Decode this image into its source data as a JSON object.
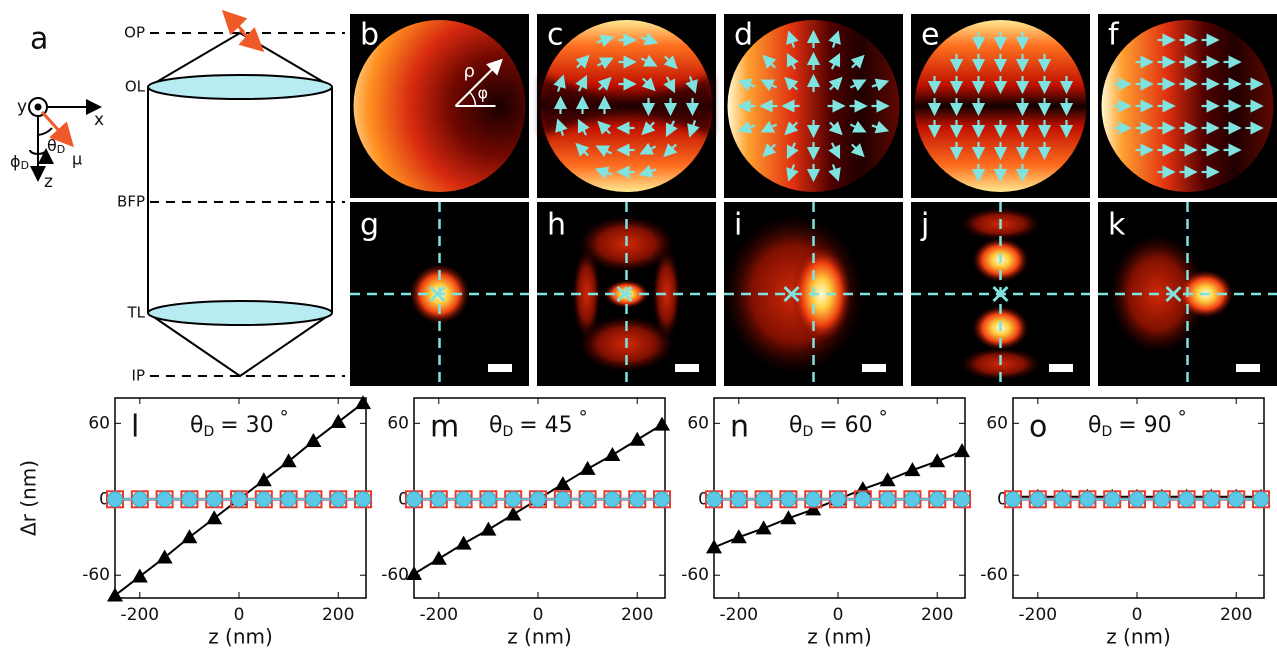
{
  "diagram": {
    "label": "a",
    "planes": [
      "OP",
      "OL",
      "BFP",
      "TL",
      "IP"
    ],
    "axes": {
      "y": "y",
      "x": "x",
      "z": "z",
      "theta": "θ",
      "theta_sub": "D",
      "phi": "ϕ",
      "phi_sub": "D",
      "mu": "μ"
    }
  },
  "pupil_panels": {
    "labels": [
      "b",
      "c",
      "d",
      "e",
      "f"
    ],
    "rho": "ρ",
    "phi": "φ"
  },
  "psf_panels": {
    "labels": [
      "g",
      "h",
      "i",
      "j",
      "k"
    ]
  },
  "chart_data": [
    {
      "type": "line",
      "label": "l",
      "title": {
        "symbol": "θ",
        "subscript": "D",
        "text": "= 30",
        "degree": "°"
      },
      "xlabel": "z (nm)",
      "ylabel": "Δr (nm)",
      "x": [
        -250,
        -200,
        -150,
        -100,
        -50,
        0,
        50,
        100,
        150,
        200,
        250
      ],
      "xlim": [
        -250,
        256
      ],
      "xticks": [
        -200,
        0,
        200
      ],
      "ylim": [
        -78,
        80
      ],
      "yticks": [
        -60,
        0,
        60
      ],
      "series": [
        {
          "marker": "triangle",
          "color": "#000000",
          "values": [
            -76,
            -61,
            -46,
            -30,
            -15,
            0,
            15,
            30,
            46,
            61,
            76
          ]
        },
        {
          "marker": "square",
          "color": "#e8392b",
          "values": [
            0,
            0,
            0,
            0,
            0,
            0,
            0,
            0,
            0,
            0,
            0
          ]
        },
        {
          "marker": "circle",
          "color": "#5cc8e6",
          "values": [
            0,
            0,
            0,
            0,
            0,
            0,
            0,
            0,
            0,
            0,
            0
          ]
        }
      ]
    },
    {
      "type": "line",
      "label": "m",
      "title": {
        "symbol": "θ",
        "subscript": "D",
        "text": "= 45",
        "degree": "°"
      },
      "xlabel": "z (nm)",
      "x": [
        -250,
        -200,
        -150,
        -100,
        -50,
        0,
        50,
        100,
        150,
        200,
        250
      ],
      "xlim": [
        -250,
        256
      ],
      "xticks": [
        -200,
        0,
        200
      ],
      "ylim": [
        -78,
        80
      ],
      "yticks": [
        -60,
        0,
        60
      ],
      "series": [
        {
          "marker": "triangle",
          "color": "#000000",
          "values": [
            -59,
            -47,
            -35,
            -24,
            -12,
            0,
            12,
            24,
            35,
            47,
            59
          ]
        },
        {
          "marker": "square",
          "color": "#e8392b",
          "values": [
            0,
            0,
            0,
            0,
            0,
            0,
            0,
            0,
            0,
            0,
            0
          ]
        },
        {
          "marker": "circle",
          "color": "#5cc8e6",
          "values": [
            0,
            0,
            0,
            0,
            0,
            0,
            0,
            0,
            0,
            0,
            0
          ]
        }
      ]
    },
    {
      "type": "line",
      "label": "n",
      "title": {
        "symbol": "θ",
        "subscript": "D",
        "text": "= 60",
        "degree": "°"
      },
      "xlabel": "z (nm)",
      "x": [
        -250,
        -200,
        -150,
        -100,
        -50,
        0,
        50,
        100,
        150,
        200,
        250
      ],
      "xlim": [
        -250,
        256
      ],
      "xticks": [
        -200,
        0,
        200
      ],
      "ylim": [
        -78,
        80
      ],
      "yticks": [
        -60,
        0,
        60
      ],
      "series": [
        {
          "marker": "triangle",
          "color": "#000000",
          "values": [
            -38,
            -30,
            -23,
            -15,
            -8,
            0,
            8,
            15,
            23,
            30,
            38
          ]
        },
        {
          "marker": "square",
          "color": "#e8392b",
          "values": [
            0,
            0,
            0,
            0,
            0,
            0,
            0,
            0,
            0,
            0,
            0
          ]
        },
        {
          "marker": "circle",
          "color": "#5cc8e6",
          "values": [
            0,
            0,
            0,
            0,
            0,
            0,
            0,
            0,
            0,
            0,
            0
          ]
        }
      ]
    },
    {
      "type": "line",
      "label": "o",
      "title": {
        "symbol": "θ",
        "subscript": "D",
        "text": "= 90",
        "degree": "°"
      },
      "xlabel": "z (nm)",
      "x": [
        -250,
        -200,
        -150,
        -100,
        -50,
        0,
        50,
        100,
        150,
        200,
        250
      ],
      "xlim": [
        -250,
        256
      ],
      "xticks": [
        -200,
        0,
        200
      ],
      "ylim": [
        -78,
        80
      ],
      "yticks": [
        -60,
        0,
        60
      ],
      "series": [
        {
          "marker": "triangle",
          "color": "#000000",
          "values": [
            2,
            2,
            2,
            2,
            2,
            2,
            2,
            2,
            2,
            2,
            2
          ]
        },
        {
          "marker": "square",
          "color": "#e8392b",
          "values": [
            0,
            0,
            0,
            0,
            0,
            0,
            0,
            0,
            0,
            0,
            0
          ]
        },
        {
          "marker": "circle",
          "color": "#5cc8e6",
          "values": [
            0,
            0,
            0,
            0,
            0,
            0,
            0,
            0,
            0,
            0,
            0
          ]
        }
      ]
    }
  ]
}
